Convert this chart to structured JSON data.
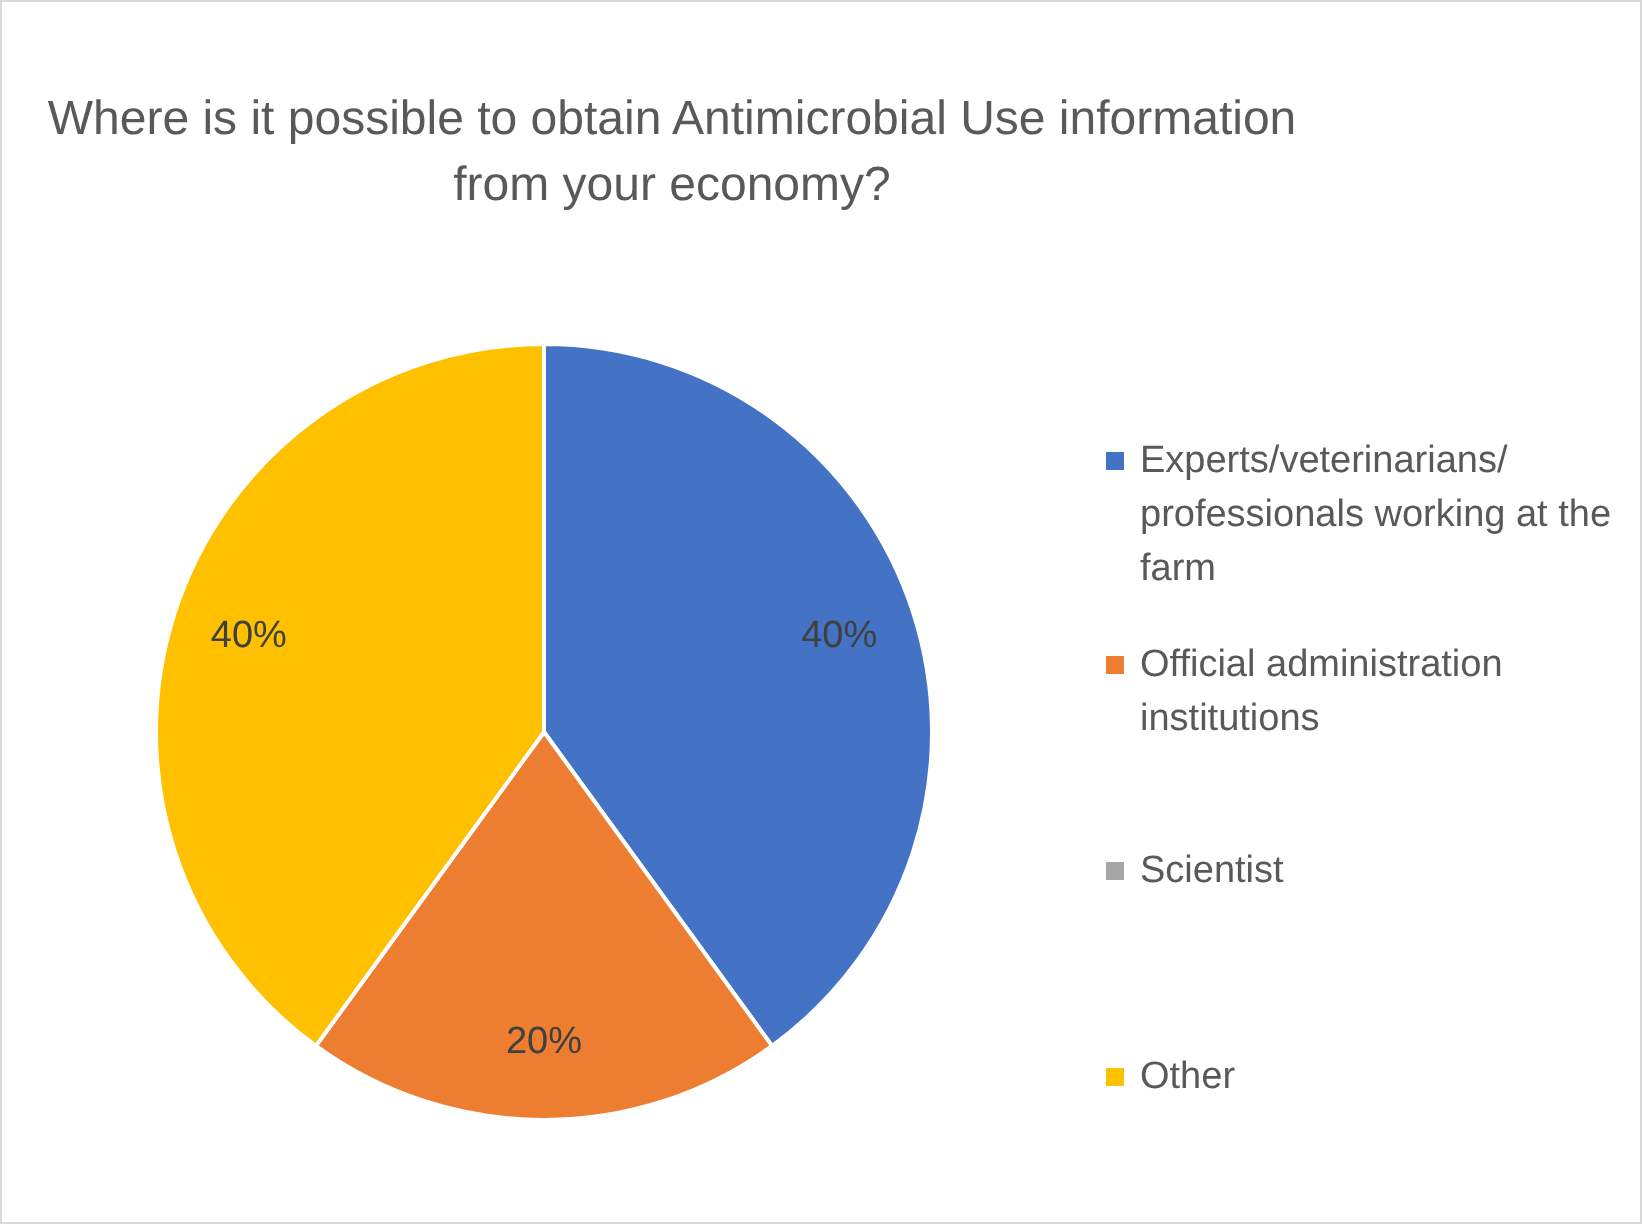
{
  "chart_data": {
    "type": "pie",
    "title": "Where is it possible to obtain Antimicrobial Use information from your economy?",
    "categories": [
      "Experts/veterinarians/ professionals working at the farm",
      "Official administration institutions",
      "Scientist",
      "Other"
    ],
    "values": [
      40,
      20,
      0,
      40
    ],
    "colors": [
      "#4472c4",
      "#ed7d31",
      "#a5a5a5",
      "#ffc000"
    ],
    "value_labels": [
      "40%",
      "20%",
      null,
      "40%"
    ],
    "legend": "right"
  }
}
